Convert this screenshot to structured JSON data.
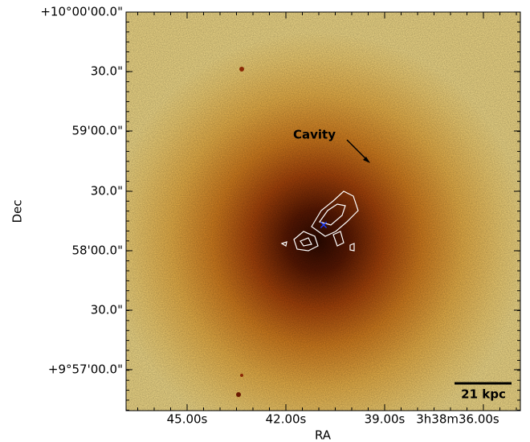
{
  "axes": {
    "x_label": "RA",
    "y_label": "Dec",
    "x_ticks": [
      "45.00s",
      "42.00s",
      "39.00s",
      "3h38m36.00s"
    ],
    "y_ticks": [
      "+10°00'00.0\"",
      "30.0\"",
      "59'00.0\"",
      "30.0\"",
      "58'00.0\"",
      "30.0\"",
      "+9°57'00.0\""
    ]
  },
  "annotations": {
    "cavity": "Cavity",
    "scale_bar": "21 kpc"
  }
}
